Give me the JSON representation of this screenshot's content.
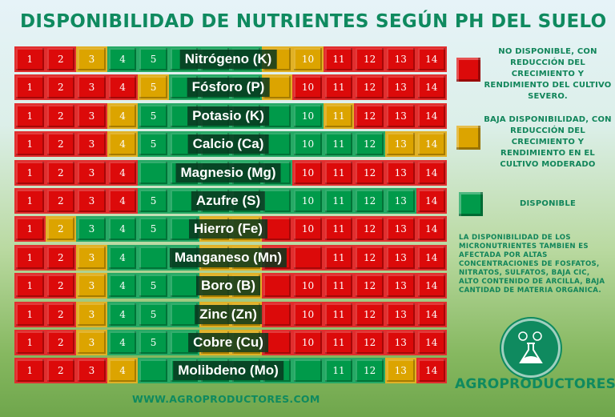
{
  "title": "DISPONIBILIDAD DE NUTRIENTES SEGÚN PH DEL SUELO",
  "chart_data": {
    "type": "heatmap",
    "title": "DISPONIBILIDAD DE NUTRIENTES SEGÚN PH DEL SUELO",
    "x_ticks": [
      "1",
      "2",
      "3",
      "4",
      "5",
      "6",
      "7",
      "8",
      "9",
      "10",
      "11",
      "12",
      "13",
      "14"
    ],
    "status_key": {
      "R": "no_disponible",
      "Y": "baja_disponibilidad",
      "G": "disponible"
    },
    "colors": {
      "R": "#dc0a0a",
      "Y": "#dca400",
      "G": "#009a4a"
    },
    "rows": [
      {
        "name": "Nitrógeno (K)",
        "status": "RRYGGGGGYYRRRR"
      },
      {
        "name": "Fósforo  (P)",
        "status": "RRRRYGGGYRRRRR"
      },
      {
        "name": "Potasio (K)",
        "status": "RRRYGGGGGGYRRR"
      },
      {
        "name": "Calcio (Ca)",
        "status": "RRRYGGGGGGGGYY"
      },
      {
        "name": "Magnesio (Mg)",
        "status": "RRRRGGGGGRRRRR"
      },
      {
        "name": "Azufre (S)",
        "status": "RRRRGGGGGGGGGR"
      },
      {
        "name": "Hierro (Fe)",
        "status": "RYGGGGYYRRRRRR"
      },
      {
        "name": "Manganeso (Mn)",
        "status": "RRYGGGYYRRRRRR"
      },
      {
        "name": "Boro (B)",
        "status": "RRYGGGYYRRRRRR"
      },
      {
        "name": "Zinc (Zn)",
        "status": "RRYGGGYYRRRRRR"
      },
      {
        "name": "Cobre (Cu)",
        "status": "RRYGGGYYRRRRRR"
      },
      {
        "name": "Molibdeno (Mo)",
        "status": "RRRYGGGGGGGGYR"
      }
    ]
  },
  "legend": [
    {
      "key": "R",
      "color": "#dc0a0a",
      "text": "NO DISPONIBLE, CON REDUCCIÓN DEL CRECIMIENTO Y RENDIMIENTO DEL CULTIVO SEVERO."
    },
    {
      "key": "Y",
      "color": "#dca400",
      "text": "BAJA DISPONIBILIDAD, CON REDUCCIÓN DEL CRECIMIENTO Y RENDIMIENTO EN EL CULTIVO MODERADO"
    },
    {
      "key": "G",
      "color": "#009a4a",
      "text": "DISPONIBLE"
    }
  ],
  "note": "LA DISPONIBILIDAD DE LOS MICRONUTRIENTES TAMBIEN ES AFECTADA POR ALTAS CONCENTRACIONES DE FOSFATOS, NITRATOS, SULFATOS, BAJA CIC, ALTO CONTENIDO DE ARCILLA, BAJA CANTIDAD DE MATERIA ORGANICA.",
  "brand": "AGROPRODUCTORES",
  "footer": "WWW.AGROPRODUCTORES.COM"
}
